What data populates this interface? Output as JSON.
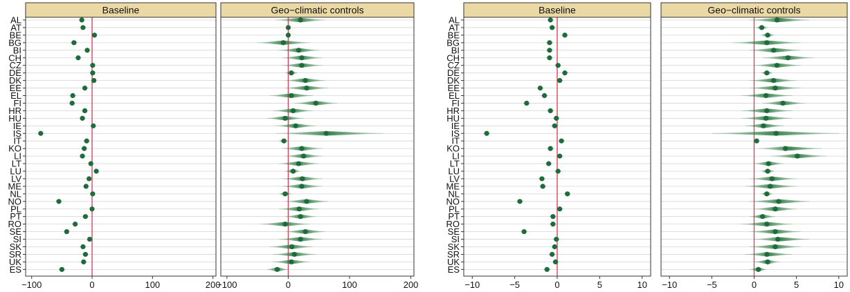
{
  "chart_data": [
    {
      "type": "scatter",
      "title": "",
      "xlabel": "",
      "ylabel": "",
      "facets": [
        "Baseline",
        "Geo−climatic controls"
      ],
      "categories": [
        "AL",
        "AT",
        "BE",
        "BG",
        "BI",
        "CH",
        "CZ",
        "DE",
        "DK",
        "EE",
        "EL",
        "FI",
        "HR",
        "HU",
        "IE",
        "IS",
        "IT",
        "KO",
        "LI",
        "LT",
        "LU",
        "LV",
        "ME",
        "NL",
        "NO",
        "PL",
        "PT",
        "RO",
        "SE",
        "SI",
        "SK",
        "SR",
        "UK",
        "ES"
      ],
      "xlim": [
        -110,
        205
      ],
      "xticks": [
        -100,
        0,
        100,
        200
      ],
      "xtick_labels": [
        "−100",
        "0",
        "100",
        "200"
      ],
      "reference_line": 0,
      "grid": true,
      "series": [
        {
          "facet": "Baseline",
          "values": [
            -17,
            -15,
            4,
            -30,
            -8,
            -23,
            1,
            1,
            3,
            -12,
            -32,
            -33,
            -12,
            -16,
            2,
            -85,
            -9,
            -13,
            -16,
            -2,
            7,
            -5,
            -10,
            1,
            -55,
            0,
            -11,
            -28,
            -42,
            -4,
            -15,
            -11,
            -14,
            -50
          ],
          "ci_low": [
            -22,
            -20,
            0,
            -36,
            -13,
            -28,
            -3,
            -3,
            -1,
            -17,
            -37,
            -38,
            -17,
            -21,
            -2,
            -90,
            -14,
            -18,
            -21,
            -6,
            3,
            -9,
            -15,
            -3,
            -60,
            -4,
            -16,
            -33,
            -47,
            -8,
            -20,
            -16,
            -19,
            -55
          ],
          "ci_high": [
            -12,
            -10,
            8,
            -24,
            -3,
            -18,
            5,
            5,
            7,
            -7,
            -27,
            -28,
            -7,
            -11,
            6,
            -80,
            -4,
            -8,
            -11,
            2,
            11,
            -1,
            -5,
            5,
            -50,
            4,
            -6,
            -23,
            -37,
            0,
            -10,
            -6,
            -9,
            -45
          ]
        },
        {
          "facet": "Geo−climatic controls",
          "values": [
            20,
            0,
            0,
            -8,
            17,
            22,
            22,
            5,
            28,
            30,
            5,
            45,
            8,
            -5,
            12,
            62,
            -7,
            22,
            25,
            17,
            8,
            23,
            22,
            -5,
            30,
            18,
            20,
            -5,
            28,
            20,
            6,
            10,
            5,
            -18
          ],
          "ci_low": [
            -20,
            -4,
            -4,
            -50,
            -15,
            -10,
            -10,
            -5,
            -5,
            -5,
            -30,
            10,
            -25,
            -35,
            -20,
            -20,
            -15,
            -10,
            -5,
            -15,
            -5,
            -10,
            -10,
            -15,
            -5,
            -15,
            -5,
            -45,
            -5,
            -15,
            -30,
            -25,
            -25,
            -35
          ],
          "ci_high": [
            60,
            4,
            4,
            35,
            50,
            55,
            55,
            15,
            60,
            65,
            40,
            80,
            40,
            25,
            45,
            155,
            0,
            55,
            55,
            50,
            20,
            55,
            55,
            5,
            65,
            50,
            45,
            35,
            60,
            55,
            40,
            45,
            35,
            0
          ]
        }
      ]
    },
    {
      "type": "scatter",
      "title": "",
      "xlabel": "",
      "ylabel": "",
      "facets": [
        "Baseline",
        "Geo−climatic controls"
      ],
      "categories": [
        "AL",
        "AT",
        "BE",
        "BG",
        "BI",
        "CH",
        "CZ",
        "DE",
        "DK",
        "EE",
        "EL",
        "FI",
        "HR",
        "HU",
        "IE",
        "IS",
        "IT",
        "KO",
        "LI",
        "LT",
        "LU",
        "LV",
        "ME",
        "NL",
        "NO",
        "PL",
        "PT",
        "RO",
        "SE",
        "SI",
        "SK",
        "SR",
        "UK",
        "ES"
      ],
      "xlim": [
        -11,
        11
      ],
      "xticks": [
        -10,
        -5,
        0,
        5,
        10
      ],
      "xtick_labels": [
        "−10",
        "−5",
        "0",
        "5",
        "10"
      ],
      "reference_line": 0,
      "grid": true,
      "series": [
        {
          "facet": "Baseline",
          "values": [
            -0.8,
            -0.6,
            0.9,
            -0.9,
            -0.9,
            -0.9,
            0.1,
            0.9,
            0.3,
            -2.0,
            -1.5,
            -3.6,
            -0.8,
            -0.1,
            -0.3,
            -8.3,
            0.5,
            -0.8,
            0.3,
            -1.0,
            0.1,
            -1.8,
            -1.7,
            1.2,
            -4.4,
            0.3,
            -0.5,
            -0.5,
            -3.9,
            -0.1,
            -0.3,
            -0.6,
            -0.2,
            -1.2
          ],
          "ci_low": [
            -1.2,
            -1.0,
            0.5,
            -1.3,
            -1.3,
            -1.3,
            -0.3,
            0.5,
            -0.1,
            -2.4,
            -1.9,
            -4.0,
            -1.2,
            -0.5,
            -0.7,
            -8.7,
            0.1,
            -1.2,
            -0.1,
            -1.4,
            -0.3,
            -2.2,
            -2.1,
            0.8,
            -4.8,
            -0.1,
            -0.9,
            -0.9,
            -4.3,
            -0.5,
            -0.7,
            -1.0,
            -0.6,
            -1.6
          ],
          "ci_high": [
            -0.4,
            -0.2,
            1.3,
            -0.5,
            -0.5,
            -0.5,
            0.5,
            1.3,
            0.7,
            -1.6,
            -1.1,
            -3.2,
            -0.4,
            0.3,
            0.1,
            -7.9,
            0.9,
            -0.4,
            0.7,
            -0.6,
            0.5,
            -1.4,
            -1.3,
            1.6,
            -4.0,
            0.7,
            -0.1,
            -0.1,
            -3.5,
            0.3,
            0.1,
            -0.2,
            0.2,
            -0.8
          ]
        },
        {
          "facet": "Geo−climatic controls",
          "values": [
            2.7,
            0.9,
            1.6,
            1.5,
            2.3,
            4.0,
            2.7,
            1.5,
            2.3,
            2.5,
            1.4,
            3.4,
            1.5,
            1.4,
            1.1,
            2.6,
            0.3,
            3.7,
            5.1,
            1.7,
            1.6,
            2.1,
            1.9,
            1.5,
            2.9,
            2.5,
            1.0,
            1.5,
            2.5,
            2.8,
            2.5,
            1.5,
            1.6,
            0.5
          ],
          "ci_low": [
            -0.5,
            0.2,
            0.8,
            -2.5,
            -0.5,
            1.0,
            0.0,
            0.8,
            -0.5,
            -0.5,
            -1.5,
            1.0,
            -1.5,
            -1.5,
            -1.0,
            -5.0,
            0.0,
            0.5,
            2.0,
            0.0,
            0.8,
            -0.5,
            -1.0,
            0.8,
            -0.5,
            0.0,
            -0.5,
            -1.5,
            -0.5,
            0.0,
            -0.5,
            -1.0,
            0.0,
            -0.5
          ],
          "ci_high": [
            6.5,
            1.6,
            2.4,
            5.5,
            5.5,
            7.0,
            5.5,
            2.2,
            5.0,
            5.5,
            4.5,
            6.0,
            4.5,
            4.5,
            3.5,
            10.0,
            0.6,
            8.0,
            8.5,
            3.5,
            2.4,
            5.0,
            5.0,
            2.2,
            6.5,
            5.0,
            2.5,
            4.5,
            5.5,
            6.5,
            5.5,
            4.5,
            3.0,
            1.5
          ]
        }
      ]
    }
  ],
  "colors": {
    "point": "#1e6b3b",
    "ci": "#2e7d44",
    "reference_line": "#d9455f",
    "strip_fill": "#ead9a4",
    "strip_border": "#333333",
    "grid": "#d4d4d4"
  }
}
